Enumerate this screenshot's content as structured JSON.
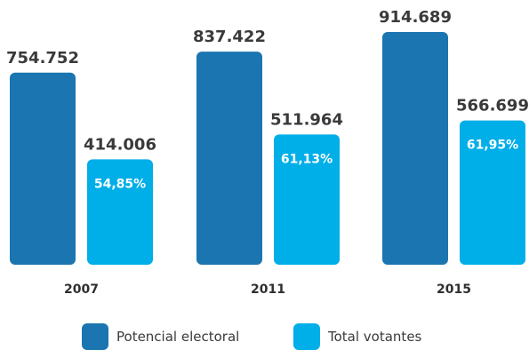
{
  "colors": {
    "potencial": "#1b75b0",
    "votantes": "#00aee8",
    "value_text": "#3a3a3a",
    "pct_text": "#ffffff",
    "cat_text": "#2f2f2f"
  },
  "chart_data": {
    "type": "bar",
    "categories": [
      "2007",
      "2011",
      "2015"
    ],
    "series": [
      {
        "name": "Potencial electoral",
        "values": [
          754752,
          837422,
          914689
        ],
        "labels": [
          "754.752",
          "837.422",
          "914.689"
        ]
      },
      {
        "name": "Total votantes",
        "values": [
          414006,
          511964,
          566699
        ],
        "labels": [
          "414.006",
          "511.964",
          "566.699"
        ],
        "percent_labels": [
          "54,85%",
          "61,13%",
          "61,95%"
        ]
      }
    ],
    "title": "",
    "xlabel": "",
    "ylabel": "",
    "legend_position": "bottom",
    "grid": false
  }
}
